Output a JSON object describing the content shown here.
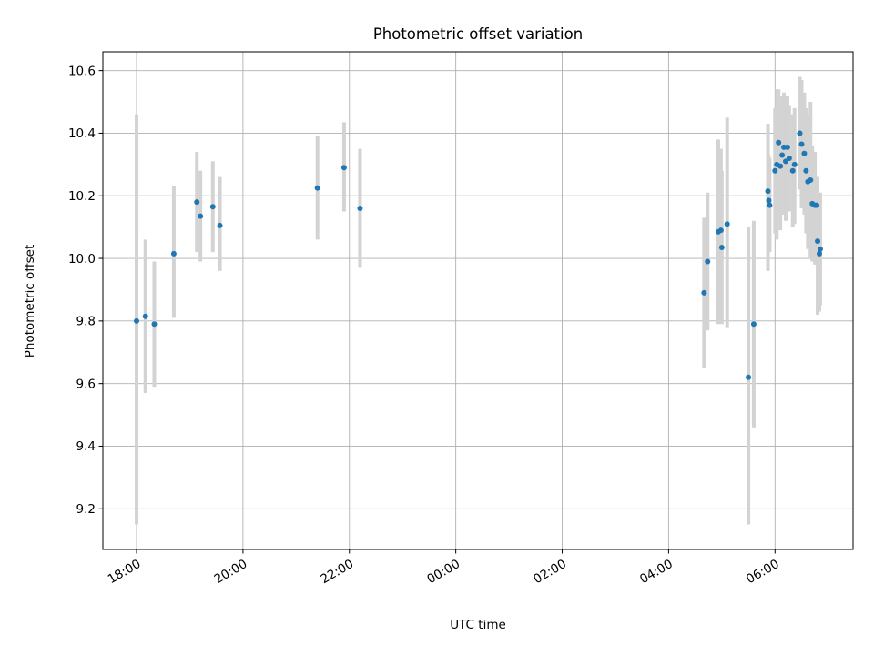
{
  "chart_data": {
    "type": "scatter",
    "title": "Photometric offset variation",
    "xlabel": "UTC time",
    "ylabel": "Photometric offset",
    "x_is_time": true,
    "xlim": [
      "17:22",
      "07:28 +1d"
    ],
    "ylim": [
      9.07,
      10.66
    ],
    "grid": true,
    "errorbar_color": "#d3d3d3",
    "marker_color": "#1f77b4",
    "xticks": [
      {
        "t": "18:00",
        "label": "18:00"
      },
      {
        "t": "20:00",
        "label": "20:00"
      },
      {
        "t": "22:00",
        "label": "22:00"
      },
      {
        "t": "00:00 +1d",
        "label": "00:00"
      },
      {
        "t": "02:00 +1d",
        "label": "02:00"
      },
      {
        "t": "04:00 +1d",
        "label": "04:00"
      },
      {
        "t": "06:00 +1d",
        "label": "06:00"
      }
    ],
    "yticks": [
      {
        "v": 9.2,
        "label": "9.2"
      },
      {
        "v": 9.4,
        "label": "9.4"
      },
      {
        "v": 9.6,
        "label": "9.6"
      },
      {
        "v": 9.8,
        "label": "9.8"
      },
      {
        "v": 10.0,
        "label": "10.0"
      },
      {
        "v": 10.2,
        "label": "10.2"
      },
      {
        "v": 10.4,
        "label": "10.4"
      },
      {
        "v": 10.6,
        "label": "10.6"
      }
    ],
    "points": [
      {
        "t": "18:00",
        "y": 9.8,
        "lo": 9.15,
        "hi": 10.46
      },
      {
        "t": "18:10",
        "y": 9.815,
        "lo": 9.57,
        "hi": 10.06
      },
      {
        "t": "18:20",
        "y": 9.79,
        "lo": 9.59,
        "hi": 9.99
      },
      {
        "t": "18:42",
        "y": 10.015,
        "lo": 9.81,
        "hi": 10.23
      },
      {
        "t": "19:08",
        "y": 10.18,
        "lo": 10.02,
        "hi": 10.34
      },
      {
        "t": "19:12",
        "y": 10.135,
        "lo": 9.99,
        "hi": 10.28
      },
      {
        "t": "19:26",
        "y": 10.165,
        "lo": 10.02,
        "hi": 10.31
      },
      {
        "t": "19:34",
        "y": 10.105,
        "lo": 9.96,
        "hi": 10.26
      },
      {
        "t": "21:24",
        "y": 10.225,
        "lo": 10.06,
        "hi": 10.39
      },
      {
        "t": "21:54",
        "y": 10.29,
        "lo": 10.15,
        "hi": 10.435
      },
      {
        "t": "22:12",
        "y": 10.16,
        "lo": 9.97,
        "hi": 10.35
      },
      {
        "t": "04:40 +1d",
        "y": 9.89,
        "lo": 9.65,
        "hi": 10.13
      },
      {
        "t": "04:44 +1d",
        "y": 9.99,
        "lo": 9.77,
        "hi": 10.21
      },
      {
        "t": "04:56 +1d",
        "y": 10.085,
        "lo": 9.79,
        "hi": 10.38
      },
      {
        "t": "04:59 +1d",
        "y": 10.09,
        "lo": 9.83,
        "hi": 10.35
      },
      {
        "t": "05:00 +1d",
        "y": 10.035,
        "lo": 9.79,
        "hi": 10.28
      },
      {
        "t": "05:06 +1d",
        "y": 10.11,
        "lo": 9.78,
        "hi": 10.45
      },
      {
        "t": "05:30 +1d",
        "y": 9.62,
        "lo": 9.15,
        "hi": 10.1
      },
      {
        "t": "05:36 +1d",
        "y": 9.79,
        "lo": 9.46,
        "hi": 10.12
      },
      {
        "t": "05:52 +1d",
        "y": 10.215,
        "lo": 9.96,
        "hi": 10.43
      },
      {
        "t": "05:53 +1d",
        "y": 10.185,
        "lo": 10.04,
        "hi": 10.33
      },
      {
        "t": "05:54 +1d",
        "y": 10.17,
        "lo": 10.02,
        "hi": 10.32
      },
      {
        "t": "06:00 +1d",
        "y": 10.28,
        "lo": 10.08,
        "hi": 10.48
      },
      {
        "t": "06:02 +1d",
        "y": 10.3,
        "lo": 10.06,
        "hi": 10.54
      },
      {
        "t": "06:04 +1d",
        "y": 10.37,
        "lo": 10.17,
        "hi": 10.54
      },
      {
        "t": "06:06 +1d",
        "y": 10.295,
        "lo": 10.09,
        "hi": 10.48
      },
      {
        "t": "06:08 +1d",
        "y": 10.33,
        "lo": 10.14,
        "hi": 10.52
      },
      {
        "t": "06:10 +1d",
        "y": 10.355,
        "lo": 10.18,
        "hi": 10.53
      },
      {
        "t": "06:12 +1d",
        "y": 10.31,
        "lo": 10.12,
        "hi": 10.5
      },
      {
        "t": "06:14 +1d",
        "y": 10.355,
        "lo": 10.19,
        "hi": 10.52
      },
      {
        "t": "06:16 +1d",
        "y": 10.32,
        "lo": 10.15,
        "hi": 10.49
      },
      {
        "t": "06:20 +1d",
        "y": 10.28,
        "lo": 10.1,
        "hi": 10.46
      },
      {
        "t": "06:22 +1d",
        "y": 10.3,
        "lo": 10.11,
        "hi": 10.48
      },
      {
        "t": "06:28 +1d",
        "y": 10.4,
        "lo": 10.22,
        "hi": 10.58
      },
      {
        "t": "06:30 +1d",
        "y": 10.365,
        "lo": 10.16,
        "hi": 10.57
      },
      {
        "t": "06:33 +1d",
        "y": 10.335,
        "lo": 10.14,
        "hi": 10.53
      },
      {
        "t": "06:35 +1d",
        "y": 10.28,
        "lo": 10.08,
        "hi": 10.48
      },
      {
        "t": "06:37 +1d",
        "y": 10.245,
        "lo": 10.03,
        "hi": 10.46
      },
      {
        "t": "06:40 +1d",
        "y": 10.25,
        "lo": 10.0,
        "hi": 10.5
      },
      {
        "t": "06:42 +1d",
        "y": 10.175,
        "lo": 9.99,
        "hi": 10.36
      },
      {
        "t": "06:45 +1d",
        "y": 10.17,
        "lo": 9.98,
        "hi": 10.34
      },
      {
        "t": "06:47 +1d",
        "y": 10.17,
        "lo": 9.99,
        "hi": 10.26
      },
      {
        "t": "06:48 +1d",
        "y": 10.055,
        "lo": 9.82,
        "hi": 10.26
      },
      {
        "t": "06:50 +1d",
        "y": 10.015,
        "lo": 9.83,
        "hi": 10.2
      },
      {
        "t": "06:51 +1d",
        "y": 10.03,
        "lo": 9.85,
        "hi": 10.21
      }
    ]
  }
}
